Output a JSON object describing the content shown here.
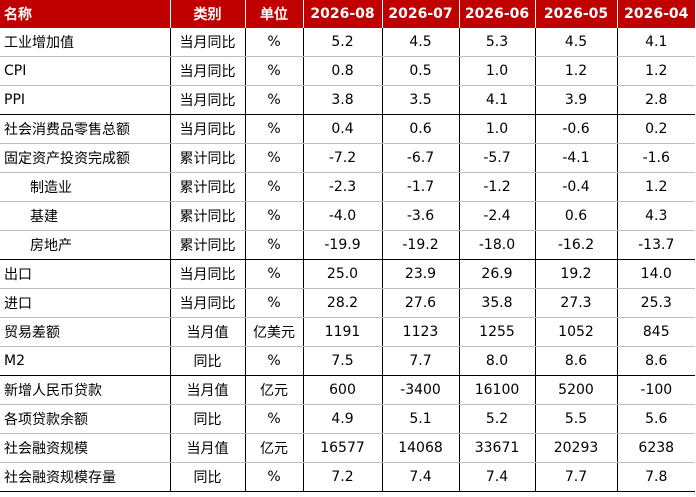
{
  "header": {
    "name": "名称",
    "category": "类别",
    "unit": "单位",
    "periods": [
      "2026-08",
      "2026-07",
      "2026-06",
      "2026-05",
      "2026-04"
    ]
  },
  "rows": [
    {
      "name": "工业增加值",
      "category": "当月同比",
      "unit": "%",
      "values": [
        "5.2",
        "4.5",
        "5.3",
        "4.5",
        "4.1"
      ]
    },
    {
      "name": "CPI",
      "category": "当月同比",
      "unit": "%",
      "values": [
        "0.8",
        "0.5",
        "1.0",
        "1.2",
        "1.2"
      ]
    },
    {
      "name": "PPI",
      "category": "当月同比",
      "unit": "%",
      "values": [
        "3.8",
        "3.5",
        "4.1",
        "3.9",
        "2.8"
      ]
    },
    {
      "name": "社会消费品零售总额",
      "category": "当月同比",
      "unit": "%",
      "values": [
        "0.4",
        "0.6",
        "1.0",
        "-0.6",
        "0.2"
      ]
    },
    {
      "name": "固定资产投资完成额",
      "category": "累计同比",
      "unit": "%",
      "values": [
        "-7.2",
        "-6.7",
        "-5.7",
        "-4.1",
        "-1.6"
      ]
    },
    {
      "name": "制造业",
      "category": "累计同比",
      "unit": "%",
      "values": [
        "-2.3",
        "-1.7",
        "-1.2",
        "-0.4",
        "1.2"
      ]
    },
    {
      "name": "基建",
      "category": "累计同比",
      "unit": "%",
      "values": [
        "-4.0",
        "-3.6",
        "-2.4",
        "0.6",
        "4.3"
      ]
    },
    {
      "name": "房地产",
      "category": "累计同比",
      "unit": "%",
      "values": [
        "-19.9",
        "-19.2",
        "-18.0",
        "-16.2",
        "-13.7"
      ]
    },
    {
      "name": "出口",
      "category": "当月同比",
      "unit": "%",
      "values": [
        "25.0",
        "23.9",
        "26.9",
        "19.2",
        "14.0"
      ]
    },
    {
      "name": "进口",
      "category": "当月同比",
      "unit": "%",
      "values": [
        "28.2",
        "27.6",
        "35.8",
        "27.3",
        "25.3"
      ]
    },
    {
      "name": "贸易差额",
      "category": "当月值",
      "unit": "亿美元",
      "values": [
        "1191",
        "1123",
        "1255",
        "1052",
        "845"
      ]
    },
    {
      "name": "M2",
      "category": "同比",
      "unit": "%",
      "values": [
        "7.5",
        "7.7",
        "8.0",
        "8.6",
        "8.6"
      ]
    },
    {
      "name": "新增人民币贷款",
      "category": "当月值",
      "unit": "亿元",
      "values": [
        "600",
        "-3400",
        "16100",
        "5200",
        "-100"
      ]
    },
    {
      "name": "各项贷款余额",
      "category": "同比",
      "unit": "%",
      "values": [
        "4.9",
        "5.1",
        "5.2",
        "5.5",
        "5.6"
      ]
    },
    {
      "name": "社会融资规模",
      "category": "当月值",
      "unit": "亿元",
      "values": [
        "16577",
        "14068",
        "33671",
        "20293",
        "6238"
      ]
    },
    {
      "name": "社会融资规模存量",
      "category": "同比",
      "unit": "%",
      "values": [
        "7.2",
        "7.4",
        "7.4",
        "7.7",
        "7.8"
      ]
    }
  ]
}
